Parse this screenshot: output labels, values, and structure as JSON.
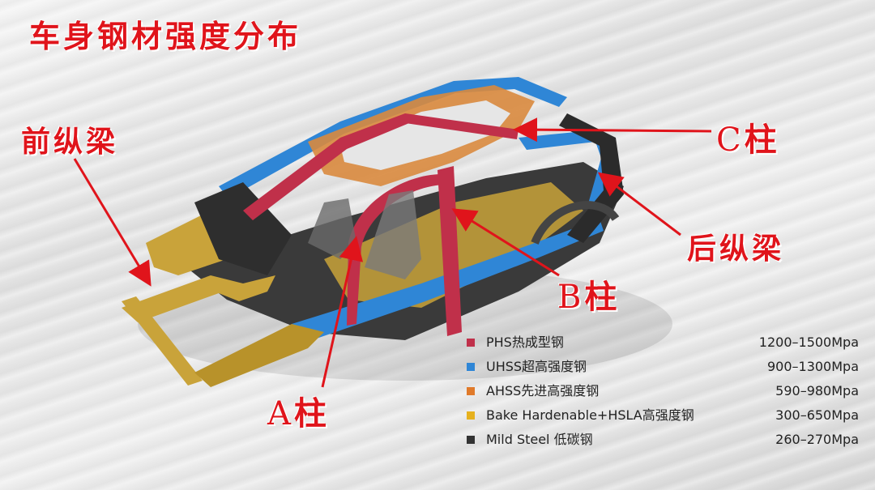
{
  "title": "车身钢材强度分布",
  "labels": {
    "front_rail": "前纵梁",
    "c_pillar": {
      "letter": "C",
      "suffix": "柱"
    },
    "rear_rail": "后纵梁",
    "b_pillar": {
      "letter": "B",
      "suffix": "柱"
    },
    "a_pillar": {
      "letter": "A",
      "suffix": "柱"
    }
  },
  "legend": [
    {
      "name": "PHS热成型钢",
      "range": "1200–1500Mpa",
      "color": "#c0304a"
    },
    {
      "name": "UHSS超高强度钢",
      "range": "900–1300Mpa",
      "color": "#2f86d6"
    },
    {
      "name": "AHSS先进高强度钢",
      "range": "590–980Mpa",
      "color": "#e07a2a"
    },
    {
      "name": "Bake Hardenable+HSLA高强度钢",
      "range": "300–650Mpa",
      "color": "#e6b11e"
    },
    {
      "name": "Mild Steel 低碳钢",
      "range": "260–270Mpa",
      "color": "#333333"
    }
  ],
  "colors": {
    "label_red": "#e0141b",
    "arrow_red": "#e0141b"
  }
}
